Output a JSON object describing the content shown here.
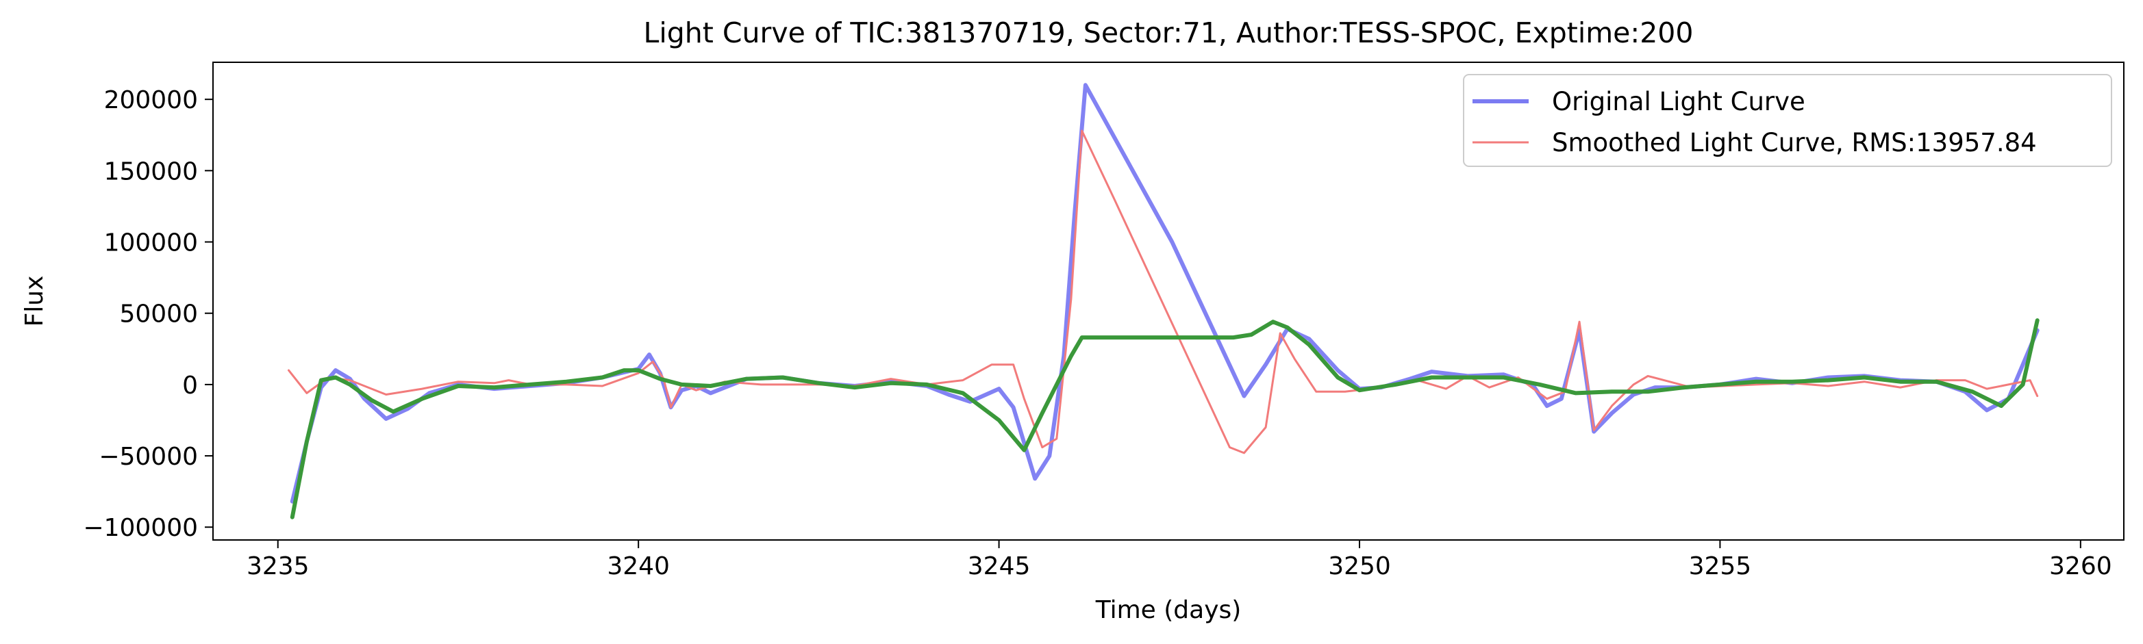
{
  "chart_data": {
    "type": "line",
    "title": "Light Curve of TIC:381370719, Sector:71, Author:TESS-SPOC, Exptime:200",
    "xlabel": "Time (days)",
    "ylabel": "Flux",
    "xlim": [
      3234.1,
      3260.6
    ],
    "ylim": [
      -109000,
      226000
    ],
    "x_ticks": [
      3235,
      3240,
      3245,
      3250,
      3255,
      3260
    ],
    "y_ticks": [
      -100000,
      -50000,
      0,
      50000,
      100000,
      150000,
      200000
    ],
    "x_tick_labels": [
      "3235",
      "3240",
      "3245",
      "3250",
      "3255",
      "3260"
    ],
    "y_tick_labels": [
      "−100000",
      "−50000",
      "0",
      "50000",
      "100000",
      "150000",
      "200000"
    ],
    "grid": false,
    "legend_position": "top-right",
    "legend": [
      {
        "label": "Original Light Curve",
        "color": "#7b7bf2"
      },
      {
        "label": "Smoothed Light Curve, RMS:13957.84",
        "color": "#f27b7b"
      }
    ],
    "series": [
      {
        "name": "Original Light Curve",
        "color": "#7b7bf2",
        "points": [
          [
            3235.2,
            -82000
          ],
          [
            3235.4,
            -40000
          ],
          [
            3235.6,
            -2000
          ],
          [
            3235.8,
            10000
          ],
          [
            3236.0,
            4000
          ],
          [
            3236.2,
            -10000
          ],
          [
            3236.5,
            -24000
          ],
          [
            3236.8,
            -17000
          ],
          [
            3237.1,
            -6000
          ],
          [
            3237.5,
            0
          ],
          [
            3238.0,
            -3000
          ],
          [
            3238.5,
            -1000
          ],
          [
            3239.0,
            1000
          ],
          [
            3239.5,
            5000
          ],
          [
            3240.0,
            11000
          ],
          [
            3240.15,
            21000
          ],
          [
            3240.3,
            8000
          ],
          [
            3240.45,
            -16000
          ],
          [
            3240.6,
            -4000
          ],
          [
            3240.8,
            -1000
          ],
          [
            3241.0,
            -6000
          ],
          [
            3241.5,
            4000
          ],
          [
            3242.0,
            5000
          ],
          [
            3242.5,
            1000
          ],
          [
            3243.0,
            -1000
          ],
          [
            3243.5,
            2000
          ],
          [
            3244.0,
            -1000
          ],
          [
            3244.3,
            -7000
          ],
          [
            3244.6,
            -12000
          ],
          [
            3245.0,
            -3000
          ],
          [
            3245.2,
            -16000
          ],
          [
            3245.5,
            -66000
          ],
          [
            3245.7,
            -50000
          ],
          [
            3245.9,
            20000
          ],
          [
            3246.05,
            120000
          ],
          [
            3246.2,
            210000
          ],
          [
            3247.4,
            100000
          ],
          [
            3248.4,
            -8000
          ],
          [
            3248.7,
            14000
          ],
          [
            3249.0,
            39000
          ],
          [
            3249.3,
            32000
          ],
          [
            3249.7,
            10000
          ],
          [
            3250.0,
            -3000
          ],
          [
            3250.3,
            -2000
          ],
          [
            3250.7,
            4000
          ],
          [
            3251.0,
            9000
          ],
          [
            3251.5,
            6000
          ],
          [
            3252.0,
            7000
          ],
          [
            3252.4,
            0
          ],
          [
            3252.6,
            -15000
          ],
          [
            3252.8,
            -10000
          ],
          [
            3253.05,
            38000
          ],
          [
            3253.25,
            -33000
          ],
          [
            3253.5,
            -20000
          ],
          [
            3253.8,
            -7000
          ],
          [
            3254.1,
            -2000
          ],
          [
            3254.5,
            -2000
          ],
          [
            3255.0,
            0
          ],
          [
            3255.5,
            4000
          ],
          [
            3256.0,
            1000
          ],
          [
            3256.5,
            5000
          ],
          [
            3257.0,
            6000
          ],
          [
            3257.5,
            3000
          ],
          [
            3258.0,
            2000
          ],
          [
            3258.4,
            -5000
          ],
          [
            3258.7,
            -18000
          ],
          [
            3259.0,
            -10000
          ],
          [
            3259.4,
            38000
          ]
        ]
      },
      {
        "name": "Smoothed Light Curve, RMS:13957.84",
        "color": "#f27b7b",
        "points": [
          [
            3235.15,
            10000
          ],
          [
            3235.4,
            -6000
          ],
          [
            3235.7,
            5000
          ],
          [
            3236.0,
            3000
          ],
          [
            3236.5,
            -7000
          ],
          [
            3237.0,
            -3000
          ],
          [
            3237.5,
            2000
          ],
          [
            3238.0,
            1000
          ],
          [
            3238.2,
            3000
          ],
          [
            3238.5,
            0
          ],
          [
            3239.0,
            0
          ],
          [
            3239.5,
            -1000
          ],
          [
            3240.0,
            8000
          ],
          [
            3240.2,
            16000
          ],
          [
            3240.35,
            4000
          ],
          [
            3240.45,
            -16000
          ],
          [
            3240.6,
            0
          ],
          [
            3240.8,
            -4000
          ],
          [
            3241.2,
            2000
          ],
          [
            3241.7,
            0
          ],
          [
            3242.5,
            0
          ],
          [
            3243.0,
            -1000
          ],
          [
            3243.5,
            4000
          ],
          [
            3244.0,
            0
          ],
          [
            3244.5,
            3000
          ],
          [
            3244.9,
            14000
          ],
          [
            3245.2,
            14000
          ],
          [
            3245.35,
            -10000
          ],
          [
            3245.6,
            -44000
          ],
          [
            3245.8,
            -38000
          ],
          [
            3246.0,
            60000
          ],
          [
            3246.15,
            178000
          ],
          [
            3246.6,
            130000
          ],
          [
            3248.2,
            -44000
          ],
          [
            3248.4,
            -48000
          ],
          [
            3248.7,
            -30000
          ],
          [
            3248.9,
            36000
          ],
          [
            3249.1,
            18000
          ],
          [
            3249.4,
            -5000
          ],
          [
            3249.8,
            -5000
          ],
          [
            3250.3,
            -2000
          ],
          [
            3250.8,
            3000
          ],
          [
            3251.2,
            -3000
          ],
          [
            3251.5,
            6000
          ],
          [
            3251.8,
            -2000
          ],
          [
            3252.2,
            5000
          ],
          [
            3252.6,
            -10000
          ],
          [
            3252.85,
            -5000
          ],
          [
            3253.05,
            44000
          ],
          [
            3253.25,
            -32000
          ],
          [
            3253.5,
            -15000
          ],
          [
            3253.8,
            0
          ],
          [
            3254.0,
            6000
          ],
          [
            3254.3,
            2000
          ],
          [
            3254.6,
            -2000
          ],
          [
            3255.5,
            0
          ],
          [
            3256.0,
            1000
          ],
          [
            3256.5,
            -1000
          ],
          [
            3257.0,
            2000
          ],
          [
            3257.5,
            -2000
          ],
          [
            3258.0,
            3000
          ],
          [
            3258.4,
            3000
          ],
          [
            3258.7,
            -3000
          ],
          [
            3259.0,
            0
          ],
          [
            3259.3,
            3000
          ],
          [
            3259.4,
            -8000
          ]
        ]
      },
      {
        "color": "#3a983a",
        "points": [
          [
            3235.2,
            -93000
          ],
          [
            3235.4,
            -40000
          ],
          [
            3235.6,
            3000
          ],
          [
            3235.8,
            5000
          ],
          [
            3236.0,
            0
          ],
          [
            3236.3,
            -11000
          ],
          [
            3236.6,
            -19000
          ],
          [
            3237.0,
            -10000
          ],
          [
            3237.5,
            -1000
          ],
          [
            3238.0,
            -2000
          ],
          [
            3238.5,
            0
          ],
          [
            3239.0,
            2000
          ],
          [
            3239.5,
            5000
          ],
          [
            3239.8,
            10000
          ],
          [
            3240.0,
            10000
          ],
          [
            3240.3,
            4000
          ],
          [
            3240.6,
            0
          ],
          [
            3241.0,
            -1000
          ],
          [
            3241.5,
            4000
          ],
          [
            3242.0,
            5000
          ],
          [
            3242.5,
            1000
          ],
          [
            3243.0,
            -2000
          ],
          [
            3243.5,
            1000
          ],
          [
            3244.0,
            0
          ],
          [
            3244.5,
            -6000
          ],
          [
            3245.0,
            -25000
          ],
          [
            3245.35,
            -46000
          ],
          [
            3245.6,
            -20000
          ],
          [
            3246.0,
            20000
          ],
          [
            3246.15,
            33000
          ],
          [
            3248.25,
            33000
          ],
          [
            3248.5,
            35000
          ],
          [
            3248.8,
            44000
          ],
          [
            3249.0,
            40000
          ],
          [
            3249.3,
            28000
          ],
          [
            3249.7,
            5000
          ],
          [
            3250.0,
            -4000
          ],
          [
            3250.5,
            0
          ],
          [
            3251.0,
            5000
          ],
          [
            3251.5,
            5000
          ],
          [
            3252.0,
            5000
          ],
          [
            3252.5,
            0
          ],
          [
            3253.0,
            -6000
          ],
          [
            3253.5,
            -5000
          ],
          [
            3254.0,
            -5000
          ],
          [
            3254.5,
            -2000
          ],
          [
            3255.0,
            0
          ],
          [
            3255.5,
            2000
          ],
          [
            3256.0,
            2000
          ],
          [
            3256.5,
            3000
          ],
          [
            3257.0,
            5000
          ],
          [
            3257.5,
            2000
          ],
          [
            3258.0,
            2000
          ],
          [
            3258.5,
            -5000
          ],
          [
            3258.9,
            -15000
          ],
          [
            3259.2,
            0
          ],
          [
            3259.4,
            45000
          ]
        ]
      }
    ]
  }
}
